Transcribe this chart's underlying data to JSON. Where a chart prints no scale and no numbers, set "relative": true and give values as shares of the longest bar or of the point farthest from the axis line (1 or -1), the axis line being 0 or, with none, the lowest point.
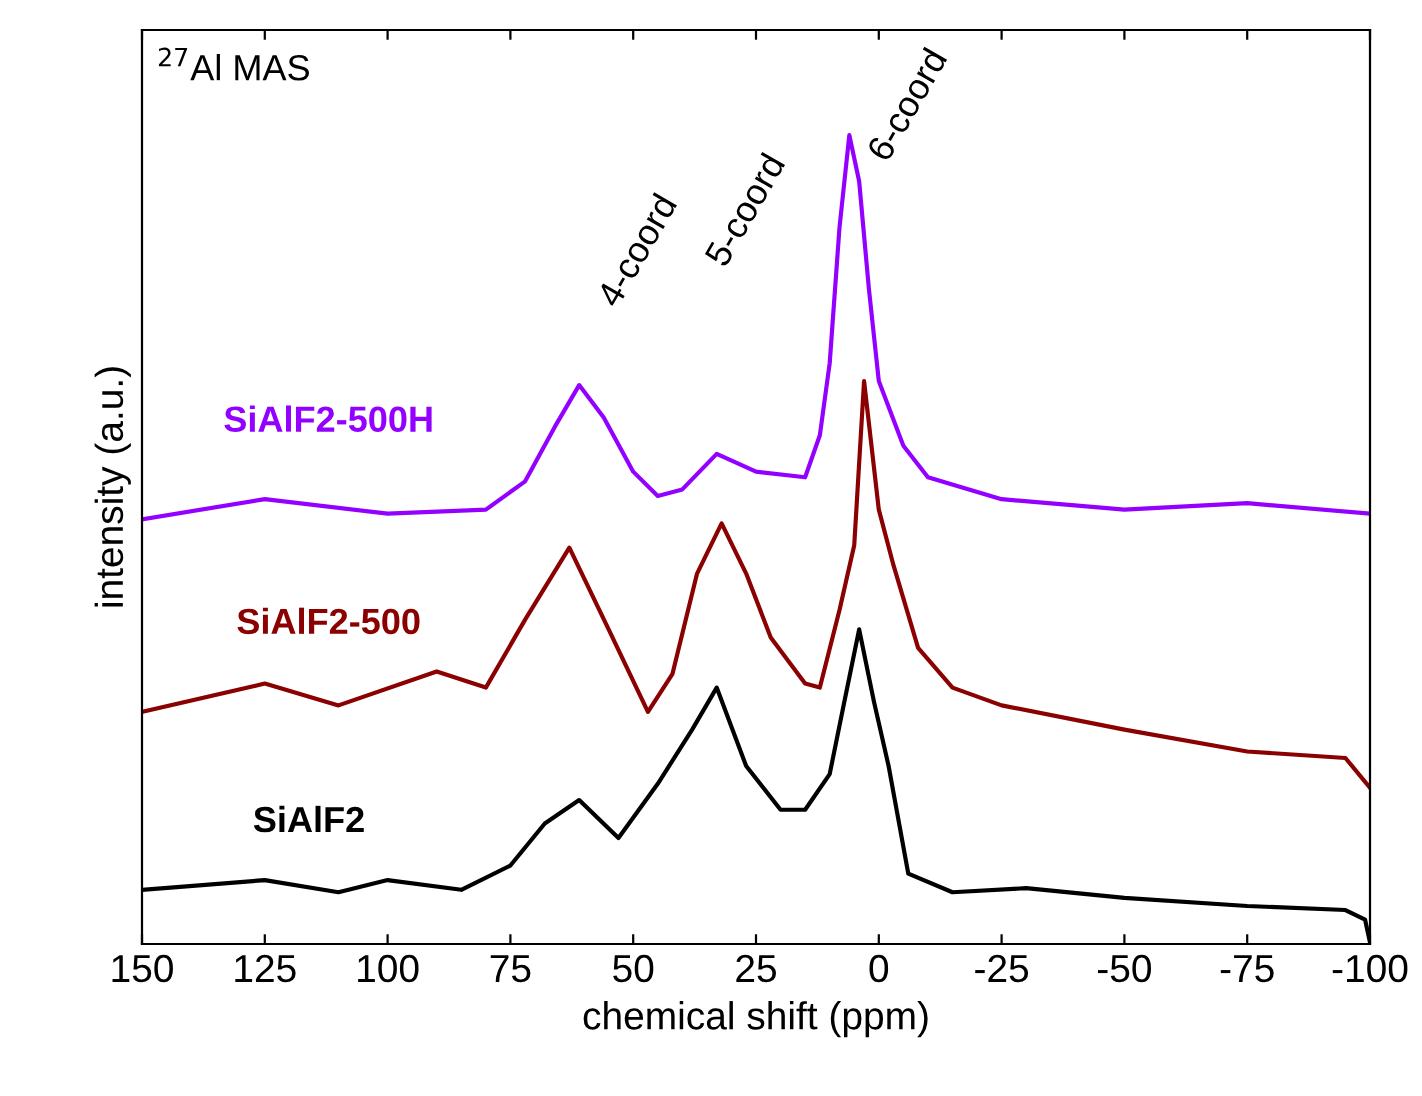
{
  "chart_data": {
    "type": "line",
    "relative": true,
    "xlabel": "chemical shift (ppm)",
    "ylabel": "intensity (a.u.)",
    "xlim": [
      150,
      -100
    ],
    "xticks": [
      150,
      125,
      100,
      75,
      50,
      25,
      0,
      -25,
      -50,
      -75,
      -100
    ],
    "grid": false,
    "marker": "none",
    "line_style": "solid",
    "annotations": [
      "$^{27}$Al MAS",
      "4-coord",
      "5-coord",
      "6-coord"
    ],
    "series": [
      {
        "name": "SiAlF2-500H",
        "color": "#9400ff",
        "x": [
          150,
          125,
          100,
          80,
          72,
          66,
          61,
          56,
          50,
          45,
          40,
          33,
          25,
          15,
          12,
          10,
          8,
          6,
          4,
          2,
          0,
          -5,
          -10,
          -25,
          -50,
          -75,
          -100
        ],
        "values": [
          0.525,
          0.55,
          0.532,
          0.537,
          0.572,
          0.639,
          0.691,
          0.651,
          0.584,
          0.554,
          0.562,
          0.606,
          0.584,
          0.577,
          0.629,
          0.718,
          0.886,
          1,
          0.943,
          0.809,
          0.696,
          0.616,
          0.577,
          0.55,
          0.537,
          0.545,
          0.532
        ]
      },
      {
        "name": "SiAlF2-500",
        "color": "#8b0000",
        "x": [
          150,
          125,
          110,
          90,
          80,
          72,
          63,
          55,
          47,
          42,
          37,
          32,
          27,
          22,
          15,
          12,
          8,
          5,
          3,
          0,
          -3,
          -8,
          -15,
          -25,
          -50,
          -75,
          -95,
          -100
        ],
        "values": [
          0.287,
          0.322,
          0.295,
          0.337,
          0.317,
          0.401,
          0.49,
          0.389,
          0.287,
          0.334,
          0.458,
          0.52,
          0.458,
          0.379,
          0.322,
          0.317,
          0.413,
          0.493,
          0.696,
          0.537,
          0.468,
          0.366,
          0.317,
          0.295,
          0.265,
          0.238,
          0.23,
          0.193
        ]
      },
      {
        "name": "SiAlF2",
        "color": "#000000",
        "x": [
          150,
          125,
          110,
          100,
          85,
          75,
          68,
          61,
          53,
          45,
          38,
          33,
          27,
          20,
          15,
          10,
          7,
          4,
          1,
          -2,
          -6,
          -15,
          -30,
          -50,
          -75,
          -95,
          -99,
          -100
        ],
        "values": [
          0.067,
          0.079,
          0.064,
          0.079,
          0.067,
          0.097,
          0.149,
          0.178,
          0.131,
          0.198,
          0.265,
          0.317,
          0.22,
          0.166,
          0.166,
          0.21,
          0.3,
          0.389,
          0.3,
          0.22,
          0.087,
          0.064,
          0.069,
          0.057,
          0.047,
          0.042,
          0.03,
          0.002
        ]
      }
    ]
  }
}
